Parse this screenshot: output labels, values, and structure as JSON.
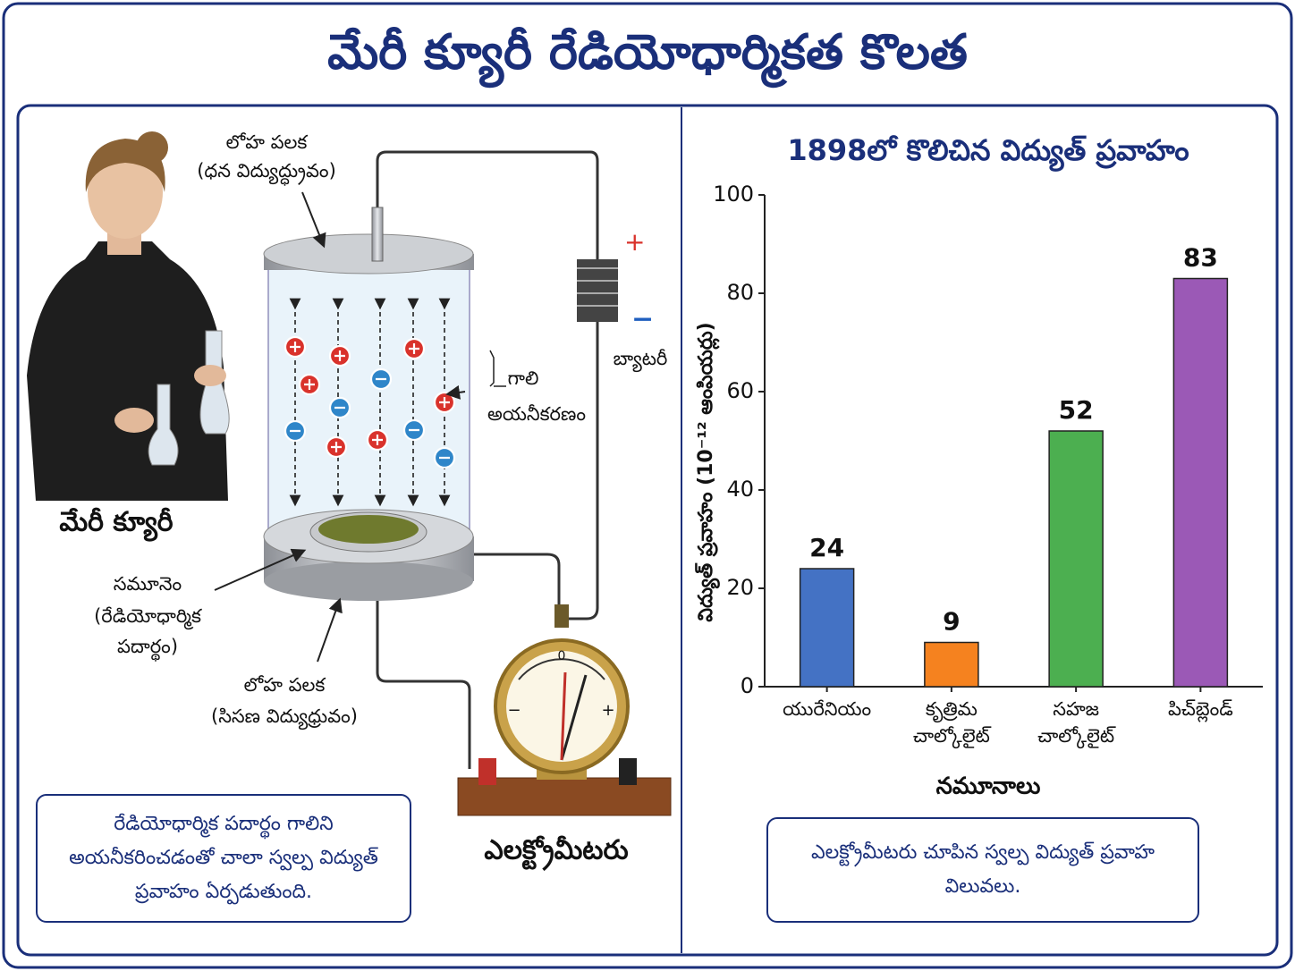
{
  "title": "మేరీ క్యూరీ రేడియోధార్మికత కొలత",
  "illustration": {
    "anode_label": [
      "లోహ పలక",
      "(ధన విద్యుద్ధ్రువం)"
    ],
    "battery_label": "బ్యాటరీ",
    "battery_signs": [
      "+",
      "−"
    ],
    "ionization_label": [
      "గాలి",
      "అయనీకరణం"
    ],
    "person_label": "మేరీ క్యూరీ",
    "sample_label": [
      "సమూనెం",
      "(రేడియోధార్మిక",
      "పదార్థం)"
    ],
    "cathode_label": [
      "లోహ పలక",
      "(సిసణ విద్యుధ్రువం)"
    ],
    "meter_label": "ఎలక్ట్రోమీటరు",
    "meter_scale": [
      "−",
      "0",
      "+"
    ],
    "note": "రేడియోధార్మిక పదార్థం గాలిని అయనీకరించడంతో చాలా స్వల్ప విద్యుత్ ప్రవాహం ఏర్పడుతుంది."
  },
  "chart_data": {
    "type": "bar",
    "title": "1898లో కొలిచిన విద్యుత్ ప్రవాహం",
    "y_label": "విద్యుత్ ప్రవాహం (10⁻¹² ఆంపియర్లు)",
    "x_label": "నమూనాలు",
    "categories": [
      "యురేనియం",
      "కృత్రిమ చాల్కోలైట్",
      "సహజ చాల్కోలైట్",
      "పిచ్‌బ్లెండ్"
    ],
    "values": [
      24,
      9,
      52,
      83
    ],
    "colors": [
      "#4472c4",
      "#f5821f",
      "#4caf50",
      "#9b59b6"
    ],
    "ylim": [
      0,
      100
    ],
    "yticks": [
      0,
      20,
      40,
      60,
      80,
      100
    ],
    "grid": false
  },
  "chart_note": "ఎలక్ట్రోమీటరు చూపిన స్వల్ప విద్యుత్ ప్రవాహ విలువలు."
}
